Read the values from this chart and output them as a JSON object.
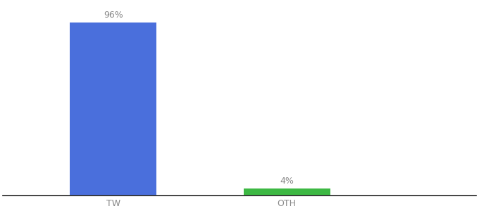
{
  "categories": [
    "TW",
    "OTH"
  ],
  "values": [
    96,
    4
  ],
  "bar_colors": [
    "#4a6fdc",
    "#3db843"
  ],
  "label_texts": [
    "96%",
    "4%"
  ],
  "background_color": "#ffffff",
  "tick_color": "#888888",
  "label_fontsize": 9,
  "tick_fontsize": 9,
  "ylim": [
    0,
    107
  ],
  "bar_width": 0.55,
  "xlim": [
    -0.2,
    2.8
  ],
  "x_positions": [
    0.5,
    1.6
  ]
}
